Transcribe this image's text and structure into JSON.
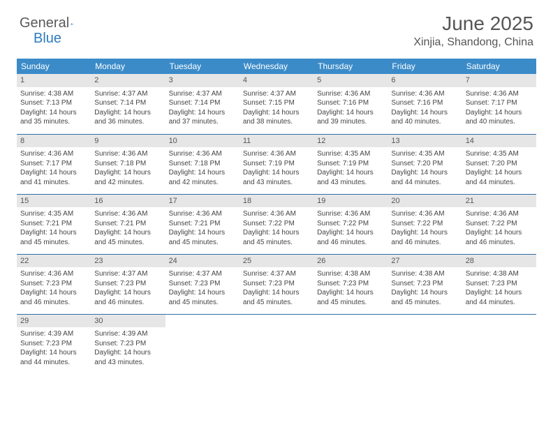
{
  "logo": {
    "text1": "General",
    "text2": "Blue"
  },
  "header": {
    "title": "June 2025",
    "location": "Xinjia, Shandong, China"
  },
  "calendar": {
    "day_headers": [
      "Sunday",
      "Monday",
      "Tuesday",
      "Wednesday",
      "Thursday",
      "Friday",
      "Saturday"
    ],
    "header_bg": "#3b8bc8",
    "row_border": "#2f6fa8",
    "daynum_bg": "#e6e6e6",
    "weeks": [
      [
        {
          "n": "1",
          "sr": "4:38 AM",
          "ss": "7:13 PM",
          "dh": "14",
          "dm": "35"
        },
        {
          "n": "2",
          "sr": "4:37 AM",
          "ss": "7:14 PM",
          "dh": "14",
          "dm": "36"
        },
        {
          "n": "3",
          "sr": "4:37 AM",
          "ss": "7:14 PM",
          "dh": "14",
          "dm": "37"
        },
        {
          "n": "4",
          "sr": "4:37 AM",
          "ss": "7:15 PM",
          "dh": "14",
          "dm": "38"
        },
        {
          "n": "5",
          "sr": "4:36 AM",
          "ss": "7:16 PM",
          "dh": "14",
          "dm": "39"
        },
        {
          "n": "6",
          "sr": "4:36 AM",
          "ss": "7:16 PM",
          "dh": "14",
          "dm": "40"
        },
        {
          "n": "7",
          "sr": "4:36 AM",
          "ss": "7:17 PM",
          "dh": "14",
          "dm": "40"
        }
      ],
      [
        {
          "n": "8",
          "sr": "4:36 AM",
          "ss": "7:17 PM",
          "dh": "14",
          "dm": "41"
        },
        {
          "n": "9",
          "sr": "4:36 AM",
          "ss": "7:18 PM",
          "dh": "14",
          "dm": "42"
        },
        {
          "n": "10",
          "sr": "4:36 AM",
          "ss": "7:18 PM",
          "dh": "14",
          "dm": "42"
        },
        {
          "n": "11",
          "sr": "4:36 AM",
          "ss": "7:19 PM",
          "dh": "14",
          "dm": "43"
        },
        {
          "n": "12",
          "sr": "4:35 AM",
          "ss": "7:19 PM",
          "dh": "14",
          "dm": "43"
        },
        {
          "n": "13",
          "sr": "4:35 AM",
          "ss": "7:20 PM",
          "dh": "14",
          "dm": "44"
        },
        {
          "n": "14",
          "sr": "4:35 AM",
          "ss": "7:20 PM",
          "dh": "14",
          "dm": "44"
        }
      ],
      [
        {
          "n": "15",
          "sr": "4:35 AM",
          "ss": "7:21 PM",
          "dh": "14",
          "dm": "45"
        },
        {
          "n": "16",
          "sr": "4:36 AM",
          "ss": "7:21 PM",
          "dh": "14",
          "dm": "45"
        },
        {
          "n": "17",
          "sr": "4:36 AM",
          "ss": "7:21 PM",
          "dh": "14",
          "dm": "45"
        },
        {
          "n": "18",
          "sr": "4:36 AM",
          "ss": "7:22 PM",
          "dh": "14",
          "dm": "45"
        },
        {
          "n": "19",
          "sr": "4:36 AM",
          "ss": "7:22 PM",
          "dh": "14",
          "dm": "46"
        },
        {
          "n": "20",
          "sr": "4:36 AM",
          "ss": "7:22 PM",
          "dh": "14",
          "dm": "46"
        },
        {
          "n": "21",
          "sr": "4:36 AM",
          "ss": "7:22 PM",
          "dh": "14",
          "dm": "46"
        }
      ],
      [
        {
          "n": "22",
          "sr": "4:36 AM",
          "ss": "7:23 PM",
          "dh": "14",
          "dm": "46"
        },
        {
          "n": "23",
          "sr": "4:37 AM",
          "ss": "7:23 PM",
          "dh": "14",
          "dm": "46"
        },
        {
          "n": "24",
          "sr": "4:37 AM",
          "ss": "7:23 PM",
          "dh": "14",
          "dm": "45"
        },
        {
          "n": "25",
          "sr": "4:37 AM",
          "ss": "7:23 PM",
          "dh": "14",
          "dm": "45"
        },
        {
          "n": "26",
          "sr": "4:38 AM",
          "ss": "7:23 PM",
          "dh": "14",
          "dm": "45"
        },
        {
          "n": "27",
          "sr": "4:38 AM",
          "ss": "7:23 PM",
          "dh": "14",
          "dm": "45"
        },
        {
          "n": "28",
          "sr": "4:38 AM",
          "ss": "7:23 PM",
          "dh": "14",
          "dm": "44"
        }
      ],
      [
        {
          "n": "29",
          "sr": "4:39 AM",
          "ss": "7:23 PM",
          "dh": "14",
          "dm": "44"
        },
        {
          "n": "30",
          "sr": "4:39 AM",
          "ss": "7:23 PM",
          "dh": "14",
          "dm": "43"
        },
        null,
        null,
        null,
        null,
        null
      ]
    ]
  },
  "labels": {
    "sunrise": "Sunrise:",
    "sunset": "Sunset:",
    "daylight_prefix": "Daylight:",
    "hours_word": "hours",
    "and_word": "and",
    "minutes_word": "minutes."
  }
}
